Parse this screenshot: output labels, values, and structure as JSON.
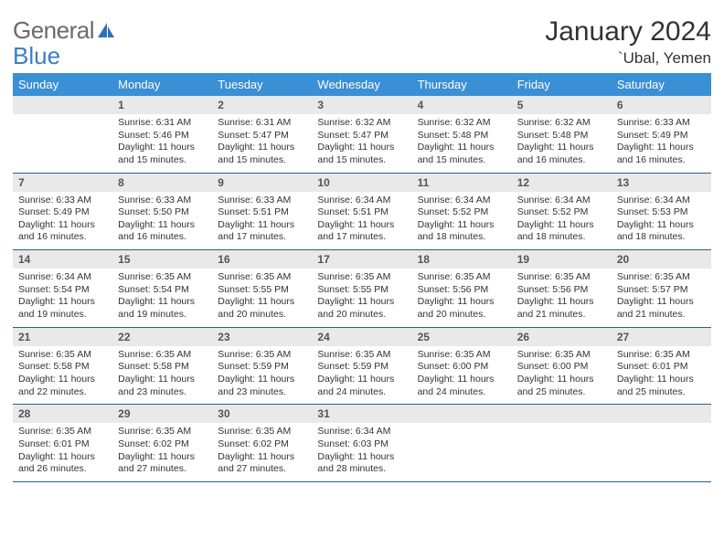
{
  "logo": {
    "word1": "General",
    "word2": "Blue",
    "icon_color": "#2f72b6"
  },
  "title": "January 2024",
  "location": "`Ubal, Yemen",
  "header_bg": "#3b8fd4",
  "header_fg": "#ffffff",
  "daynum_bg": "#e9e9e9",
  "week_border": "#2b5f8a",
  "day_headers": [
    "Sunday",
    "Monday",
    "Tuesday",
    "Wednesday",
    "Thursday",
    "Friday",
    "Saturday"
  ],
  "weeks": [
    {
      "nums": [
        "",
        "1",
        "2",
        "3",
        "4",
        "5",
        "6"
      ],
      "cells": [
        null,
        {
          "sunrise": "6:31 AM",
          "sunset": "5:46 PM",
          "daylight": "11 hours and 15 minutes."
        },
        {
          "sunrise": "6:31 AM",
          "sunset": "5:47 PM",
          "daylight": "11 hours and 15 minutes."
        },
        {
          "sunrise": "6:32 AM",
          "sunset": "5:47 PM",
          "daylight": "11 hours and 15 minutes."
        },
        {
          "sunrise": "6:32 AM",
          "sunset": "5:48 PM",
          "daylight": "11 hours and 15 minutes."
        },
        {
          "sunrise": "6:32 AM",
          "sunset": "5:48 PM",
          "daylight": "11 hours and 16 minutes."
        },
        {
          "sunrise": "6:33 AM",
          "sunset": "5:49 PM",
          "daylight": "11 hours and 16 minutes."
        }
      ]
    },
    {
      "nums": [
        "7",
        "8",
        "9",
        "10",
        "11",
        "12",
        "13"
      ],
      "cells": [
        {
          "sunrise": "6:33 AM",
          "sunset": "5:49 PM",
          "daylight": "11 hours and 16 minutes."
        },
        {
          "sunrise": "6:33 AM",
          "sunset": "5:50 PM",
          "daylight": "11 hours and 16 minutes."
        },
        {
          "sunrise": "6:33 AM",
          "sunset": "5:51 PM",
          "daylight": "11 hours and 17 minutes."
        },
        {
          "sunrise": "6:34 AM",
          "sunset": "5:51 PM",
          "daylight": "11 hours and 17 minutes."
        },
        {
          "sunrise": "6:34 AM",
          "sunset": "5:52 PM",
          "daylight": "11 hours and 18 minutes."
        },
        {
          "sunrise": "6:34 AM",
          "sunset": "5:52 PM",
          "daylight": "11 hours and 18 minutes."
        },
        {
          "sunrise": "6:34 AM",
          "sunset": "5:53 PM",
          "daylight": "11 hours and 18 minutes."
        }
      ]
    },
    {
      "nums": [
        "14",
        "15",
        "16",
        "17",
        "18",
        "19",
        "20"
      ],
      "cells": [
        {
          "sunrise": "6:34 AM",
          "sunset": "5:54 PM",
          "daylight": "11 hours and 19 minutes."
        },
        {
          "sunrise": "6:35 AM",
          "sunset": "5:54 PM",
          "daylight": "11 hours and 19 minutes."
        },
        {
          "sunrise": "6:35 AM",
          "sunset": "5:55 PM",
          "daylight": "11 hours and 20 minutes."
        },
        {
          "sunrise": "6:35 AM",
          "sunset": "5:55 PM",
          "daylight": "11 hours and 20 minutes."
        },
        {
          "sunrise": "6:35 AM",
          "sunset": "5:56 PM",
          "daylight": "11 hours and 20 minutes."
        },
        {
          "sunrise": "6:35 AM",
          "sunset": "5:56 PM",
          "daylight": "11 hours and 21 minutes."
        },
        {
          "sunrise": "6:35 AM",
          "sunset": "5:57 PM",
          "daylight": "11 hours and 21 minutes."
        }
      ]
    },
    {
      "nums": [
        "21",
        "22",
        "23",
        "24",
        "25",
        "26",
        "27"
      ],
      "cells": [
        {
          "sunrise": "6:35 AM",
          "sunset": "5:58 PM",
          "daylight": "11 hours and 22 minutes."
        },
        {
          "sunrise": "6:35 AM",
          "sunset": "5:58 PM",
          "daylight": "11 hours and 23 minutes."
        },
        {
          "sunrise": "6:35 AM",
          "sunset": "5:59 PM",
          "daylight": "11 hours and 23 minutes."
        },
        {
          "sunrise": "6:35 AM",
          "sunset": "5:59 PM",
          "daylight": "11 hours and 24 minutes."
        },
        {
          "sunrise": "6:35 AM",
          "sunset": "6:00 PM",
          "daylight": "11 hours and 24 minutes."
        },
        {
          "sunrise": "6:35 AM",
          "sunset": "6:00 PM",
          "daylight": "11 hours and 25 minutes."
        },
        {
          "sunrise": "6:35 AM",
          "sunset": "6:01 PM",
          "daylight": "11 hours and 25 minutes."
        }
      ]
    },
    {
      "nums": [
        "28",
        "29",
        "30",
        "31",
        "",
        "",
        ""
      ],
      "cells": [
        {
          "sunrise": "6:35 AM",
          "sunset": "6:01 PM",
          "daylight": "11 hours and 26 minutes."
        },
        {
          "sunrise": "6:35 AM",
          "sunset": "6:02 PM",
          "daylight": "11 hours and 27 minutes."
        },
        {
          "sunrise": "6:35 AM",
          "sunset": "6:02 PM",
          "daylight": "11 hours and 27 minutes."
        },
        {
          "sunrise": "6:34 AM",
          "sunset": "6:03 PM",
          "daylight": "11 hours and 28 minutes."
        },
        null,
        null,
        null
      ]
    }
  ],
  "labels": {
    "sunrise": "Sunrise:",
    "sunset": "Sunset:",
    "daylight": "Daylight:"
  }
}
